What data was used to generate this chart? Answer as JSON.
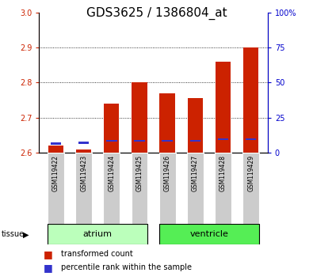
{
  "title": "GDS3625 / 1386804_at",
  "samples": [
    "GSM119422",
    "GSM119423",
    "GSM119424",
    "GSM119425",
    "GSM119426",
    "GSM119427",
    "GSM119428",
    "GSM119429"
  ],
  "transformed_count": [
    2.62,
    2.61,
    2.74,
    2.8,
    2.77,
    2.755,
    2.86,
    2.9
  ],
  "percentile_rank_top": [
    2.626,
    2.628,
    2.634,
    2.634,
    2.634,
    2.634,
    2.638,
    2.638
  ],
  "ylim_left": [
    2.6,
    3.0
  ],
  "ylim_right": [
    0,
    100
  ],
  "yticks_left": [
    2.6,
    2.7,
    2.8,
    2.9,
    3.0
  ],
  "yticks_right": [
    0,
    25,
    50,
    75,
    100
  ],
  "bar_bottom": 2.6,
  "tissue_groups": {
    "atrium": [
      0,
      3
    ],
    "ventricle": [
      4,
      7
    ]
  },
  "tissue_colors": {
    "atrium": "#bbffbb",
    "ventricle": "#55ee55"
  },
  "bar_color_red": "#cc2200",
  "bar_color_blue": "#3333cc",
  "grid_color": "#000000",
  "left_tick_color": "#cc2200",
  "right_tick_color": "#0000cc",
  "title_fontsize": 11,
  "tick_fontsize": 7,
  "sample_fontsize": 5.5,
  "legend_fontsize": 7
}
